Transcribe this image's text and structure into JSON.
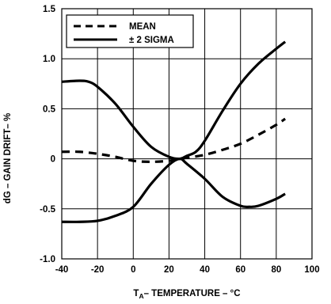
{
  "chart_data": {
    "type": "line",
    "xlabel_main": "T",
    "xlabel_sub": "A",
    "xlabel_rest": "– TEMPERATURE – °C",
    "ylabel": "dG – GAIN DRIFT– %",
    "xlim": [
      -40,
      100
    ],
    "ylim": [
      -1.0,
      1.5
    ],
    "x_ticks": [
      "-40",
      "-20",
      "0",
      "20",
      "40",
      "60",
      "80",
      "100"
    ],
    "y_ticks": [
      "1.5",
      "1.0",
      "0.5",
      "0",
      "-0.5",
      "-1.0"
    ],
    "grid": true,
    "legend_position": "top-left",
    "series": [
      {
        "name": "MEAN",
        "style": "dashed",
        "x": [
          -40,
          -30,
          -20,
          -10,
          0,
          10,
          20,
          26,
          30,
          40,
          50,
          60,
          70,
          80,
          85
        ],
        "y": [
          0.07,
          0.07,
          0.05,
          0.02,
          -0.02,
          -0.03,
          -0.02,
          0.0,
          0.01,
          0.04,
          0.09,
          0.15,
          0.24,
          0.34,
          0.4
        ]
      },
      {
        "name": "± 2 SIGMA",
        "style": "solid",
        "x": [
          -40,
          -30,
          -25,
          -20,
          -10,
          0,
          10,
          20,
          26,
          30,
          35,
          40,
          50,
          60,
          70,
          80,
          85
        ],
        "y": [
          0.77,
          0.78,
          0.77,
          0.72,
          0.55,
          0.32,
          0.12,
          0.02,
          0.0,
          0.03,
          0.07,
          0.18,
          0.48,
          0.75,
          0.95,
          1.1,
          1.17
        ]
      },
      {
        "name": "",
        "style": "solid",
        "x": [
          -40,
          -30,
          -20,
          -10,
          0,
          10,
          20,
          26,
          30,
          40,
          50,
          60,
          65,
          70,
          80,
          85
        ],
        "y": [
          -0.63,
          -0.63,
          -0.62,
          -0.57,
          -0.48,
          -0.25,
          -0.06,
          0.0,
          -0.05,
          -0.2,
          -0.38,
          -0.47,
          -0.48,
          -0.47,
          -0.4,
          -0.35
        ]
      }
    ],
    "colors": {
      "line": "#000000",
      "grid": "#000000",
      "background": "#ffffff"
    }
  }
}
